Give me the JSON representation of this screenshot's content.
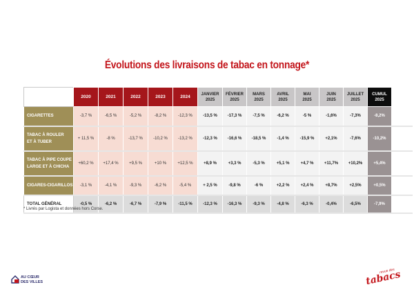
{
  "title": "Évolutions des livraisons de tabac en tonnage*",
  "table": {
    "years": [
      "2020",
      "2021",
      "2022",
      "2023",
      "2024"
    ],
    "months": [
      [
        "JANVIER",
        "2025"
      ],
      [
        "FÉVRIER",
        "2025"
      ],
      [
        "MARS",
        "2025"
      ],
      [
        "AVRIL",
        "2025"
      ],
      [
        "MAI",
        "2025"
      ],
      [
        "JUIN",
        "2025"
      ],
      [
        "JUILLET",
        "2025"
      ]
    ],
    "cumul": [
      "CUMUL",
      "2025"
    ],
    "rows": [
      {
        "label": [
          "CIGARETTES"
        ],
        "years": [
          "-3,7 %",
          "-6,5 %",
          "-5,2 %",
          "-8,2 %",
          "-12,3 %"
        ],
        "months": [
          "-13,5 %",
          "-17,3 %",
          "-7,5 %",
          "-6,2 %",
          "-5 %",
          "-1,6%",
          "-7,3%"
        ],
        "cumul": "-8,2%"
      },
      {
        "label": [
          "TABAC À ROULER",
          "ET À TUBER"
        ],
        "years": [
          "+ 11,5 %",
          "-8 %",
          "-13,7 %",
          "-10,2 %",
          "-13,2 %"
        ],
        "months": [
          "-12,3 %",
          "-16,6 %",
          "-18,5 %",
          "-1,4 %",
          "-15,9 %",
          "+2,1%",
          "-7,6%"
        ],
        "cumul": "-10,2%"
      },
      {
        "label": [
          "TABAC À PIPE COUPE",
          "LARGE ET À CHICHA"
        ],
        "years": [
          "+60,2 %",
          "+17,4 %",
          "+9,5 %",
          "+10 %",
          "+12,5 %"
        ],
        "months": [
          "+8,9 %",
          "+3,3 %",
          "-5,3 %",
          "+5,1 %",
          "+4,7 %",
          "+11,7%",
          "+10,2%"
        ],
        "cumul": "+5,4%"
      },
      {
        "label": [
          "CIGARES-CIGARILLOS"
        ],
        "years": [
          "-3,1 %",
          "-4,1 %",
          "-9,3 %",
          "-6,2 %",
          "-5,4 %"
        ],
        "months": [
          "+ 2,5 %",
          "-9,8 %",
          "-6 %",
          "+2,2 %",
          "+2,4 %",
          "+8,7%",
          "+2,5%"
        ],
        "cumul": "+0,5%"
      },
      {
        "label": [
          "TOTAL GÉNÉRAL"
        ],
        "total": true,
        "years": [
          "-0,5 %",
          "-6,2 %",
          "-6,7 %",
          "-7,9 %",
          "-11,5 %"
        ],
        "months": [
          "-12,3 %",
          "-16,3 %",
          "-9,3 %",
          "-4,8 %",
          "-6,3 %",
          "-0,4%",
          "-6,5%"
        ],
        "cumul": "-7,9%"
      }
    ]
  },
  "footnote": "* Livrés par Logista et données hors Corse.",
  "logo_left": {
    "line1": "AU CŒUR",
    "line2": "DES VILLES",
    "colors": [
      "#2a2a6b",
      "#c3161c"
    ]
  },
  "logo_right": {
    "small": "revue des",
    "big": "tabacs"
  }
}
